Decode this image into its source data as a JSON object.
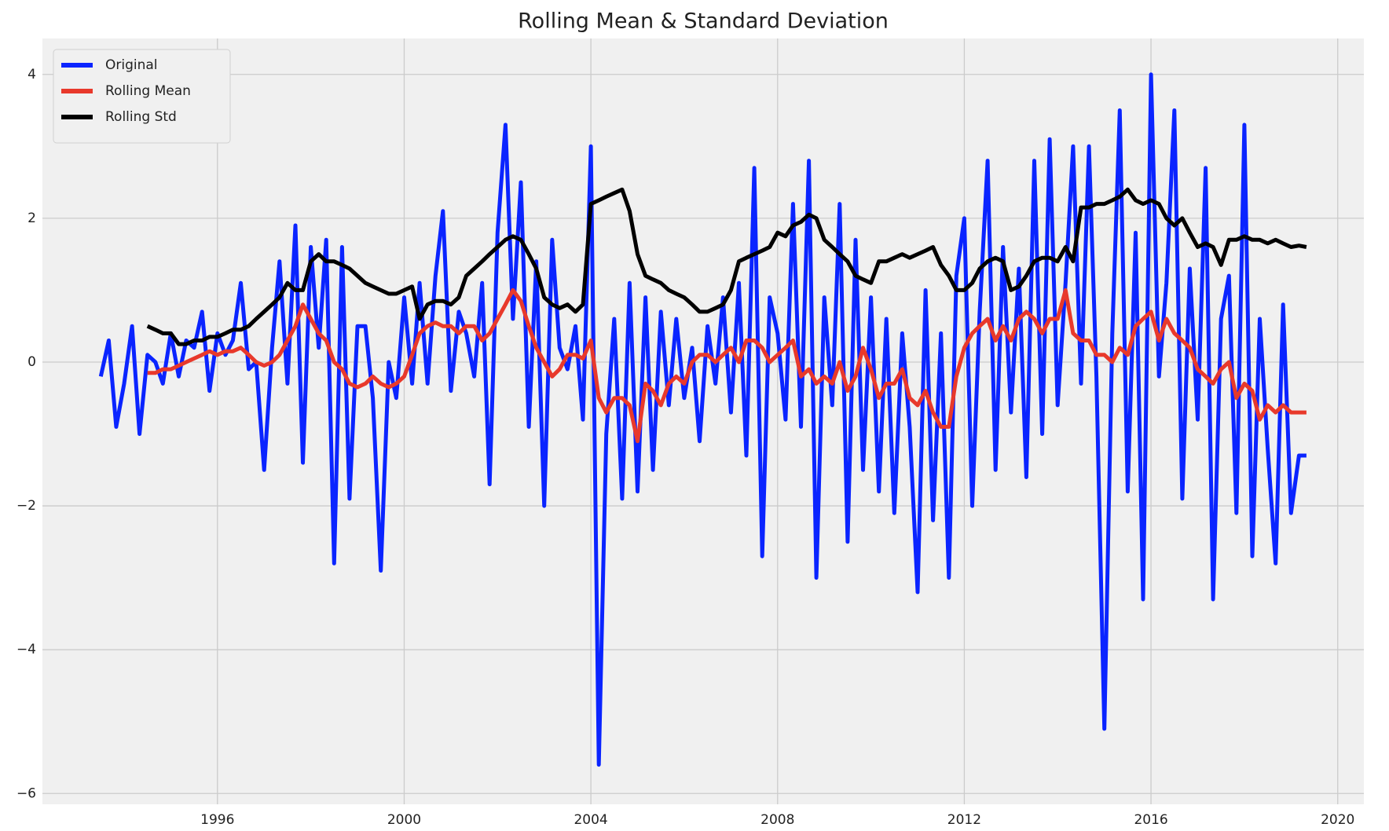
{
  "chart_data": {
    "type": "line",
    "title": "Rolling Mean & Standard Deviation",
    "x": [
      1993.5,
      1993.67,
      1993.83,
      1994,
      1994.17,
      1994.33,
      1994.5,
      1994.67,
      1994.83,
      1995,
      1995.17,
      1995.33,
      1995.5,
      1995.67,
      1995.83,
      1996,
      1996.17,
      1996.33,
      1996.5,
      1996.67,
      1996.83,
      1997,
      1997.17,
      1997.33,
      1997.5,
      1997.67,
      1997.83,
      1998,
      1998.17,
      1998.33,
      1998.5,
      1998.67,
      1998.83,
      1999,
      1999.17,
      1999.33,
      1999.5,
      1999.67,
      1999.83,
      2000,
      2000.17,
      2000.33,
      2000.5,
      2000.67,
      2000.83,
      2001,
      2001.17,
      2001.33,
      2001.5,
      2001.67,
      2001.83,
      2002,
      2002.17,
      2002.33,
      2002.5,
      2002.67,
      2002.83,
      2003,
      2003.17,
      2003.33,
      2003.5,
      2003.67,
      2003.83,
      2004,
      2004.17,
      2004.33,
      2004.5,
      2004.67,
      2004.83,
      2005,
      2005.17,
      2005.33,
      2005.5,
      2005.67,
      2005.83,
      2006,
      2006.17,
      2006.33,
      2006.5,
      2006.67,
      2006.83,
      2007,
      2007.17,
      2007.33,
      2007.5,
      2007.67,
      2007.83,
      2008,
      2008.17,
      2008.33,
      2008.5,
      2008.67,
      2008.83,
      2009,
      2009.17,
      2009.33,
      2009.5,
      2009.67,
      2009.83,
      2010,
      2010.17,
      2010.33,
      2010.5,
      2010.67,
      2010.83,
      2011,
      2011.17,
      2011.33,
      2011.5,
      2011.67,
      2011.83,
      2012,
      2012.17,
      2012.33,
      2012.5,
      2012.67,
      2012.83,
      2013,
      2013.17,
      2013.33,
      2013.5,
      2013.67,
      2013.83,
      2014,
      2014.17,
      2014.33,
      2014.5,
      2014.67,
      2014.83,
      2015,
      2015.17,
      2015.33,
      2015.5,
      2015.67,
      2015.83,
      2016,
      2016.17,
      2016.33,
      2016.5,
      2016.67,
      2016.83,
      2017,
      2017.17,
      2017.33,
      2017.5,
      2017.67,
      2017.83,
      2018,
      2018.17,
      2018.33,
      2018.5,
      2018.67,
      2018.83,
      2019,
      2019.17,
      2019.33
    ],
    "series": [
      {
        "name": "Original",
        "color": "#0a24ff",
        "values": [
          -0.2,
          0.3,
          -0.9,
          -0.3,
          0.5,
          -1.0,
          0.1,
          0.0,
          -0.3,
          0.4,
          -0.2,
          0.3,
          0.2,
          0.7,
          -0.4,
          0.4,
          0.1,
          0.3,
          1.1,
          -0.1,
          0.0,
          -1.5,
          0.2,
          1.4,
          -0.3,
          1.9,
          -1.4,
          1.6,
          0.2,
          1.7,
          -2.8,
          1.6,
          -1.9,
          0.5,
          0.5,
          -0.5,
          -2.9,
          0.0,
          -0.5,
          0.9,
          -0.3,
          1.1,
          -0.3,
          1.2,
          2.1,
          -0.4,
          0.7,
          0.4,
          -0.2,
          1.1,
          -1.7,
          1.8,
          3.3,
          0.6,
          2.5,
          -0.9,
          1.4,
          -2.0,
          1.7,
          0.2,
          -0.1,
          0.5,
          -0.8,
          3.0,
          -5.6,
          -1.0,
          0.6,
          -1.9,
          1.1,
          -1.8,
          0.9,
          -1.5,
          0.7,
          -0.6,
          0.6,
          -0.5,
          0.2,
          -1.1,
          0.5,
          -0.3,
          0.9,
          -0.7,
          1.1,
          -1.3,
          2.7,
          -2.7,
          0.9,
          0.4,
          -0.8,
          2.2,
          -0.9,
          2.8,
          -3.0,
          0.9,
          -0.6,
          2.2,
          -2.5,
          1.7,
          -1.5,
          0.9,
          -1.8,
          0.6,
          -2.1,
          0.4,
          -0.9,
          -3.2,
          1.0,
          -2.2,
          0.4,
          -3.0,
          1.2,
          2.0,
          -2.0,
          0.7,
          2.8,
          -1.5,
          1.6,
          -0.7,
          1.3,
          -1.6,
          2.8,
          -1.0,
          3.1,
          -0.6,
          1.1,
          3.0,
          -0.3,
          3.0,
          -0.2,
          -5.1,
          0.4,
          3.5,
          -1.8,
          1.8,
          -3.3,
          4.0,
          -0.2,
          1.1,
          3.5,
          -1.9,
          1.3,
          -0.8,
          2.7,
          -3.3,
          0.6,
          1.2,
          -2.1,
          3.3,
          -2.7,
          0.6,
          -1.2,
          -2.8,
          0.8,
          -2.1,
          -1.3,
          -1.3
        ]
      },
      {
        "name": "Rolling Mean",
        "color": "#e8392b",
        "values": [
          null,
          null,
          null,
          null,
          null,
          null,
          -0.15,
          -0.15,
          -0.1,
          -0.1,
          -0.05,
          0.0,
          0.05,
          0.1,
          0.15,
          0.1,
          0.15,
          0.15,
          0.2,
          0.1,
          0.0,
          -0.05,
          0.0,
          0.1,
          0.3,
          0.5,
          0.8,
          0.6,
          0.4,
          0.3,
          0.0,
          -0.1,
          -0.3,
          -0.35,
          -0.3,
          -0.2,
          -0.3,
          -0.35,
          -0.3,
          -0.2,
          0.1,
          0.4,
          0.5,
          0.55,
          0.5,
          0.5,
          0.4,
          0.5,
          0.5,
          0.3,
          0.4,
          0.6,
          0.8,
          1.0,
          0.85,
          0.5,
          0.2,
          0.0,
          -0.2,
          -0.1,
          0.1,
          0.1,
          0.05,
          0.3,
          -0.5,
          -0.7,
          -0.5,
          -0.5,
          -0.6,
          -1.1,
          -0.3,
          -0.4,
          -0.6,
          -0.3,
          -0.2,
          -0.3,
          0.0,
          0.1,
          0.1,
          0.0,
          0.1,
          0.2,
          0.0,
          0.3,
          0.3,
          0.2,
          0.0,
          0.1,
          0.2,
          0.3,
          -0.2,
          -0.1,
          -0.3,
          -0.2,
          -0.3,
          0.0,
          -0.4,
          -0.2,
          0.2,
          -0.1,
          -0.5,
          -0.3,
          -0.3,
          -0.1,
          -0.5,
          -0.6,
          -0.4,
          -0.7,
          -0.9,
          -0.9,
          -0.2,
          0.2,
          0.4,
          0.5,
          0.6,
          0.3,
          0.5,
          0.3,
          0.6,
          0.7,
          0.6,
          0.4,
          0.6,
          0.6,
          1.0,
          0.4,
          0.3,
          0.3,
          0.1,
          0.1,
          0.0,
          0.2,
          0.1,
          0.5,
          0.6,
          0.7,
          0.3,
          0.6,
          0.4,
          0.3,
          0.2,
          -0.1,
          -0.2,
          -0.3,
          -0.1,
          0.0,
          -0.5,
          -0.3,
          -0.4,
          -0.8,
          -0.6,
          -0.7,
          -0.6,
          -0.7,
          -0.7,
          -0.7
        ]
      },
      {
        "name": "Rolling Std",
        "color": "#000000",
        "values": [
          null,
          null,
          null,
          null,
          null,
          null,
          0.5,
          0.45,
          0.4,
          0.4,
          0.25,
          0.25,
          0.3,
          0.3,
          0.35,
          0.35,
          0.4,
          0.45,
          0.45,
          0.5,
          0.6,
          0.7,
          0.8,
          0.9,
          1.1,
          1.0,
          1.0,
          1.4,
          1.5,
          1.4,
          1.4,
          1.35,
          1.3,
          1.2,
          1.1,
          1.05,
          1.0,
          0.95,
          0.95,
          1.0,
          1.05,
          0.6,
          0.8,
          0.85,
          0.85,
          0.8,
          0.9,
          1.2,
          1.3,
          1.4,
          1.5,
          1.6,
          1.7,
          1.75,
          1.7,
          1.5,
          1.3,
          0.9,
          0.8,
          0.75,
          0.8,
          0.7,
          0.8,
          2.2,
          2.25,
          2.3,
          2.35,
          2.4,
          2.1,
          1.5,
          1.2,
          1.15,
          1.1,
          1.0,
          0.95,
          0.9,
          0.8,
          0.7,
          0.7,
          0.75,
          0.8,
          1.0,
          1.4,
          1.45,
          1.5,
          1.55,
          1.6,
          1.8,
          1.75,
          1.9,
          1.95,
          2.05,
          2.0,
          1.7,
          1.6,
          1.5,
          1.4,
          1.2,
          1.15,
          1.1,
          1.4,
          1.4,
          1.45,
          1.5,
          1.45,
          1.5,
          1.55,
          1.6,
          1.35,
          1.2,
          1.0,
          1.0,
          1.1,
          1.3,
          1.4,
          1.45,
          1.4,
          1.0,
          1.05,
          1.2,
          1.4,
          1.45,
          1.45,
          1.4,
          1.6,
          1.4,
          2.15,
          2.15,
          2.2,
          2.2,
          2.25,
          2.3,
          2.4,
          2.25,
          2.2,
          2.25,
          2.2,
          2.0,
          1.9,
          2.0,
          1.8,
          1.6,
          1.65,
          1.6,
          1.35,
          1.7,
          1.7,
          1.75,
          1.7,
          1.7,
          1.65,
          1.7,
          1.65,
          1.6,
          1.62,
          1.6
        ]
      }
    ],
    "xlim": [
      1992.25,
      2020.56
    ],
    "xticks": [
      1996,
      2000,
      2004,
      2008,
      2012,
      2016,
      2020
    ],
    "ylim": [
      -6.15,
      4.5
    ],
    "yticks": [
      {
        "value": -6,
        "label": "−6"
      },
      {
        "value": -4,
        "label": "−4"
      },
      {
        "value": -2,
        "label": "−2"
      },
      0,
      2,
      4
    ],
    "grid": true,
    "legend": "upper left"
  }
}
